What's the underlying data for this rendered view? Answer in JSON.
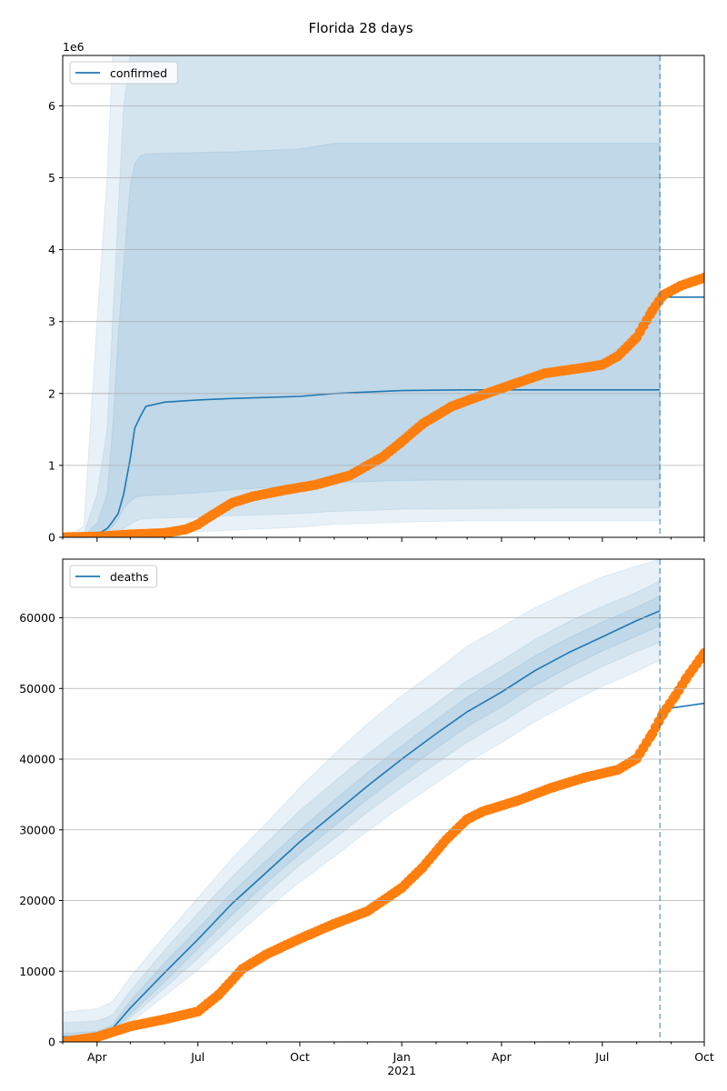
{
  "figure": {
    "title": "Florida 28 days"
  },
  "colors": {
    "series_line": "#1f77b4",
    "band": "#1f77b4",
    "observed": "#ff7f0e",
    "grid": "#b0b0b0"
  },
  "chart_data": [
    {
      "type": "line",
      "name": "confirmed",
      "legend": [
        "confirmed"
      ],
      "legend_position": "upper-left",
      "y_offset_label": "1e6",
      "ylim": [
        0,
        6700000
      ],
      "xlim": [
        "2020-03-01",
        "2021-10-01"
      ],
      "yticks": [
        0,
        1,
        2,
        3,
        4,
        5,
        6
      ],
      "ytick_labels": [
        "0",
        "1",
        "2",
        "3",
        "4",
        "5",
        "6"
      ],
      "grid": "y",
      "forecast_start": "2021-08-22",
      "model": {
        "x": [
          "2020-03-01",
          "2020-03-20",
          "2020-04-01",
          "2020-04-10",
          "2020-04-15",
          "2020-04-20",
          "2020-04-25",
          "2020-05-01",
          "2020-05-05",
          "2020-05-10",
          "2020-05-15",
          "2020-06-01",
          "2020-07-01",
          "2020-08-01",
          "2020-10-01",
          "2020-11-01",
          "2021-01-01",
          "2021-03-01",
          "2021-06-01",
          "2021-08-22"
        ],
        "y": [
          0,
          2000,
          40000,
          120000,
          220000,
          330000,
          600000,
          1100000,
          1520000,
          1680000,
          1820000,
          1880000,
          1910000,
          1930000,
          1960000,
          2000000,
          2040000,
          2050000,
          2050000,
          2050000
        ]
      },
      "forecast": {
        "x": [
          "2021-08-22",
          "2021-10-01"
        ],
        "y": [
          3340000,
          3340000
        ]
      },
      "bands": [
        {
          "lower": [
            0,
            0,
            0,
            15000,
            20000,
            25000,
            30000,
            50000,
            55000,
            60000,
            65000,
            70000,
            80000,
            100000,
            140000,
            180000,
            210000,
            230000,
            230000,
            230000
          ],
          "upper": [
            0,
            150000,
            3000000,
            5000000,
            6700000,
            6700000,
            6700000,
            6700000,
            6700000,
            6700000,
            6700000,
            6700000,
            6700000,
            6700000,
            6700000,
            6700000,
            6700000,
            6700000,
            6700000,
            6700000
          ]
        },
        {
          "lower": [
            0,
            0,
            10000,
            40000,
            60000,
            80000,
            120000,
            180000,
            220000,
            250000,
            260000,
            270000,
            280000,
            300000,
            330000,
            360000,
            390000,
            400000,
            410000,
            410000
          ],
          "upper": [
            0,
            50000,
            600000,
            1500000,
            3000000,
            4500000,
            6000000,
            6700000,
            6700000,
            6700000,
            6700000,
            6700000,
            6700000,
            6700000,
            6700000,
            6700000,
            6700000,
            6700000,
            6700000,
            6700000
          ]
        },
        {
          "lower": [
            0,
            0,
            20000,
            80000,
            150000,
            250000,
            400000,
            500000,
            550000,
            570000,
            580000,
            590000,
            620000,
            660000,
            720000,
            760000,
            790000,
            800000,
            800000,
            800000
          ],
          "upper": [
            0,
            20000,
            200000,
            600000,
            1500000,
            2800000,
            3800000,
            4900000,
            5200000,
            5300000,
            5330000,
            5340000,
            5350000,
            5360000,
            5400000,
            5480000,
            5480000,
            5480000,
            5480000,
            5480000
          ]
        }
      ],
      "observed": {
        "x": [
          "2020-03-01",
          "2020-04-01",
          "2020-05-01",
          "2020-06-01",
          "2020-06-20",
          "2020-07-01",
          "2020-07-15",
          "2020-08-01",
          "2020-08-20",
          "2020-09-15",
          "2020-10-15",
          "2020-11-15",
          "2020-12-15",
          "2021-01-01",
          "2021-01-20",
          "2021-02-15",
          "2021-03-15",
          "2021-04-10",
          "2021-05-10",
          "2021-06-15",
          "2021-07-01",
          "2021-07-15",
          "2021-08-01",
          "2021-08-15",
          "2021-08-25",
          "2021-09-10",
          "2021-10-01"
        ],
        "y": [
          0,
          10000,
          40000,
          60000,
          110000,
          180000,
          320000,
          480000,
          570000,
          650000,
          730000,
          860000,
          1120000,
          1330000,
          1580000,
          1820000,
          1980000,
          2120000,
          2280000,
          2360000,
          2400000,
          2520000,
          2780000,
          3150000,
          3370000,
          3500000,
          3610000
        ]
      }
    },
    {
      "type": "line",
      "name": "deaths",
      "legend": [
        "deaths"
      ],
      "legend_position": "upper-left",
      "ylim": [
        0,
        68300
      ],
      "xlim": [
        "2020-03-01",
        "2021-10-01"
      ],
      "yticks": [
        0,
        10000,
        20000,
        30000,
        40000,
        50000,
        60000
      ],
      "ytick_labels": [
        "0",
        "10000",
        "20000",
        "30000",
        "40000",
        "50000",
        "60000"
      ],
      "xticks": [
        "2020-04-01",
        "2020-07-01",
        "2020-10-01",
        "2021-01-01",
        "2021-04-01",
        "2021-07-01",
        "2021-10-01"
      ],
      "xtick_labels": [
        "Apr",
        "Jul",
        "Oct",
        "Jan",
        "Apr",
        "Jul",
        "Oct"
      ],
      "xtick_sub_label": "2021",
      "grid": "y",
      "forecast_start": "2021-08-22",
      "model": {
        "x": [
          "2020-03-01",
          "2020-04-01",
          "2020-04-15",
          "2020-05-01",
          "2020-06-01",
          "2020-07-01",
          "2020-08-01",
          "2020-09-01",
          "2020-10-01",
          "2020-11-01",
          "2020-12-01",
          "2021-01-01",
          "2021-02-01",
          "2021-03-01",
          "2021-04-01",
          "2021-05-01",
          "2021-06-01",
          "2021-07-01",
          "2021-08-01",
          "2021-08-22"
        ],
        "y": [
          700,
          900,
          1900,
          4800,
          9800,
          14500,
          19600,
          24000,
          28300,
          32300,
          36200,
          40000,
          43600,
          46700,
          49500,
          52500,
          55100,
          57300,
          59600,
          61000
        ]
      },
      "forecast": {
        "x": [
          "2021-08-22",
          "2021-10-01"
        ],
        "y": [
          47000,
          47900
        ]
      },
      "bands": [
        {
          "lower": [
            0,
            0,
            700,
            2700,
            6500,
            10200,
            14600,
            18800,
            22600,
            26200,
            29800,
            33300,
            36600,
            39600,
            42300,
            45300,
            47900,
            50300,
            52400,
            54000
          ],
          "upper": [
            4200,
            4700,
            5700,
            9200,
            15000,
            20400,
            26000,
            31000,
            36000,
            40700,
            45000,
            49000,
            52500,
            56000,
            58700,
            61400,
            63700,
            65800,
            67300,
            68300
          ]
        },
        {
          "lower": [
            0,
            200,
            1100,
            3400,
            7600,
            11800,
            16400,
            20900,
            25000,
            28700,
            32500,
            36000,
            39400,
            42400,
            45200,
            48100,
            50800,
            53100,
            55200,
            56500
          ],
          "upper": [
            2700,
            3000,
            3800,
            7200,
            13000,
            18200,
            23400,
            28200,
            32700,
            36800,
            40700,
            44400,
            47900,
            51100,
            54000,
            56900,
            59500,
            61600,
            63600,
            65200
          ]
        },
        {
          "lower": [
            200,
            400,
            1400,
            3900,
            8500,
            13200,
            18000,
            22500,
            26600,
            30500,
            34300,
            38000,
            41500,
            44600,
            47400,
            50400,
            53000,
            55300,
            57400,
            58900
          ],
          "upper": [
            1200,
            1500,
            2400,
            5800,
            11200,
            16000,
            21200,
            25700,
            30000,
            34200,
            38100,
            41900,
            45600,
            48800,
            51700,
            54600,
            57200,
            59400,
            61500,
            63100
          ]
        }
      ],
      "observed": {
        "x": [
          "2020-03-01",
          "2020-04-01",
          "2020-05-01",
          "2020-06-01",
          "2020-07-01",
          "2020-07-20",
          "2020-08-10",
          "2020-09-01",
          "2020-10-01",
          "2020-11-01",
          "2020-12-01",
          "2021-01-01",
          "2021-01-20",
          "2021-02-10",
          "2021-03-01",
          "2021-03-15",
          "2021-04-15",
          "2021-05-15",
          "2021-06-15",
          "2021-07-15",
          "2021-08-01",
          "2021-08-15",
          "2021-08-25",
          "2021-09-05",
          "2021-09-15",
          "2021-10-01"
        ],
        "y": [
          0,
          700,
          2200,
          3200,
          4300,
          6700,
          10300,
          12400,
          14600,
          16700,
          18500,
          21800,
          24700,
          28600,
          31500,
          32600,
          34100,
          35900,
          37400,
          38500,
          40100,
          43600,
          46500,
          49000,
          51500,
          55000
        ]
      }
    }
  ]
}
